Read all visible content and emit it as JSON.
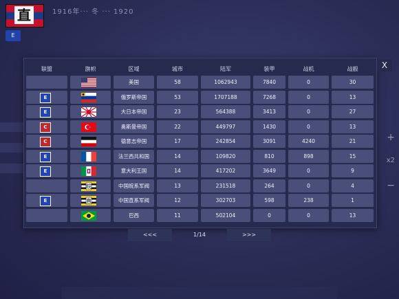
{
  "background": {
    "flag_char": "直",
    "date": "1916年··· 冬 ··· 1920"
  },
  "table": {
    "headers": [
      "联盟",
      "旗帜",
      "区域",
      "城市",
      "陆军",
      "装甲",
      "战机",
      "战舰"
    ],
    "rows": [
      {
        "alliance": "",
        "flag": "usa",
        "region": "美国",
        "cities": "58",
        "army": "1062943",
        "armor": "7840",
        "aircraft": "0",
        "ships": "30"
      },
      {
        "alliance": "E",
        "flag": "russia",
        "region": "俄罗斯帝国",
        "cities": "53",
        "army": "1707188",
        "armor": "7268",
        "aircraft": "0",
        "ships": "13"
      },
      {
        "alliance": "E",
        "flag": "japan",
        "region": "大日本帝国",
        "cities": "23",
        "army": "564388",
        "armor": "3413",
        "aircraft": "0",
        "ships": "27"
      },
      {
        "alliance": "C",
        "flag": "ottoman",
        "region": "奥斯曼帝国",
        "cities": "22",
        "army": "449797",
        "armor": "1430",
        "aircraft": "0",
        "ships": "13"
      },
      {
        "alliance": "C",
        "flag": "german",
        "region": "德意志帝国",
        "cities": "17",
        "army": "242854",
        "armor": "3091",
        "aircraft": "4240",
        "ships": "21"
      },
      {
        "alliance": "E",
        "flag": "france",
        "region": "法兰西共和国",
        "cities": "14",
        "army": "109820",
        "armor": "810",
        "aircraft": "898",
        "ships": "15"
      },
      {
        "alliance": "E",
        "flag": "italy",
        "region": "意大利王国",
        "cities": "14",
        "army": "417202",
        "armor": "3649",
        "aircraft": "0",
        "ships": "9"
      },
      {
        "alliance": "",
        "flag": "china-wan",
        "region": "中国皖系军阀",
        "cities": "13",
        "army": "231518",
        "armor": "264",
        "aircraft": "0",
        "ships": "4"
      },
      {
        "alliance": "E",
        "flag": "china-zhi",
        "region": "中国直系军阀",
        "cities": "12",
        "army": "302703",
        "armor": "598",
        "aircraft": "238",
        "ships": "1"
      },
      {
        "alliance": "",
        "flag": "brazil",
        "region": "巴西",
        "cities": "11",
        "army": "502104",
        "armor": "0",
        "aircraft": "0",
        "ships": "13"
      }
    ]
  },
  "pager": {
    "prev": "<<<",
    "page": "1/14",
    "next": ">>>"
  },
  "close_label": "X",
  "colors": {
    "panel": "#262a4e",
    "cell": "#4a4f79",
    "alliance_E": "#2244b8",
    "alliance_C": "#c0282e"
  }
}
